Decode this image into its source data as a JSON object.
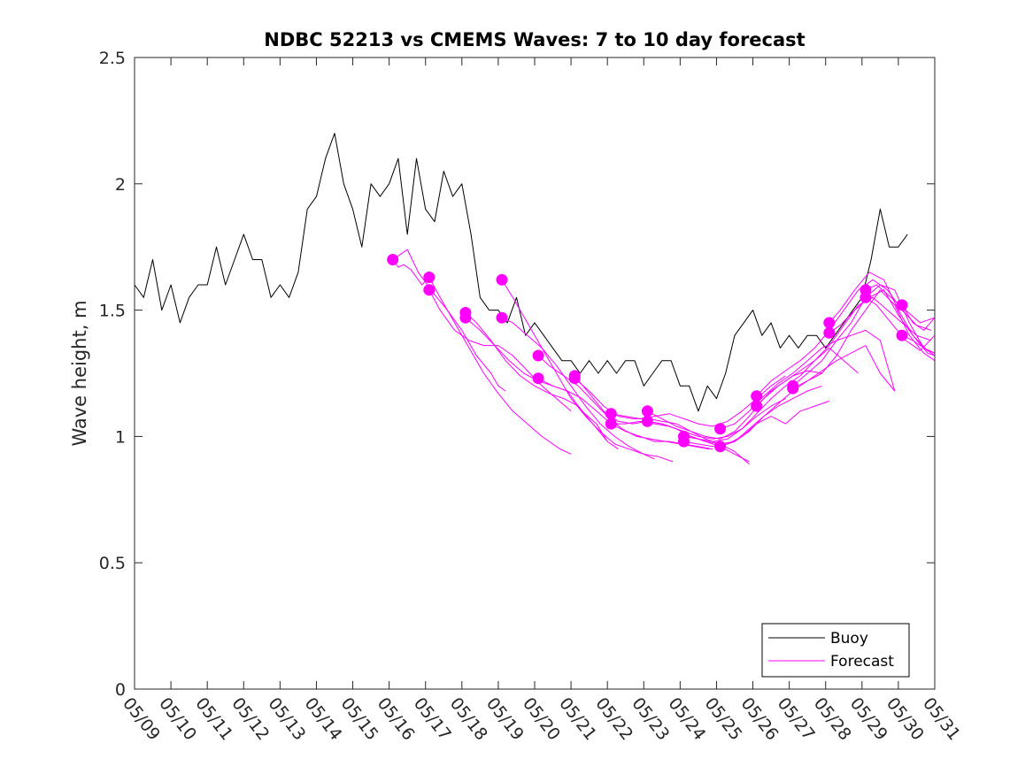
{
  "chart_data": {
    "type": "line",
    "title": "NDBC 52213 vs CMEMS Waves: 7 to 10 day forecast",
    "xlabel": "",
    "ylabel": "Wave height, m",
    "xlim": [
      9,
      31
    ],
    "ylim": [
      0,
      2.5
    ],
    "x_tick_labels": [
      "05/09",
      "05/10",
      "05/11",
      "05/12",
      "05/13",
      "05/14",
      "05/15",
      "05/16",
      "05/17",
      "05/18",
      "05/19",
      "05/20",
      "05/21",
      "05/22",
      "05/23",
      "05/24",
      "05/25",
      "05/26",
      "05/27",
      "05/28",
      "05/29",
      "05/30",
      "05/31"
    ],
    "y_ticks": [
      0,
      0.5,
      1,
      1.5,
      2,
      2.5
    ],
    "y_tick_labels": [
      "0",
      "0.5",
      "1",
      "1.5",
      "2",
      "2.5"
    ],
    "grid": false,
    "legend_position": "bottom-right",
    "legend": [
      "Buoy",
      "Forecast"
    ],
    "colors": {
      "buoy": "#000000",
      "forecast": "#ff00ff"
    },
    "series": [
      {
        "name": "Buoy",
        "x": [
          9.0,
          9.25,
          9.5,
          9.75,
          10.0,
          10.25,
          10.5,
          10.75,
          11.0,
          11.25,
          11.5,
          11.75,
          12.0,
          12.25,
          12.5,
          12.75,
          13.0,
          13.25,
          13.5,
          13.75,
          14.0,
          14.25,
          14.5,
          14.75,
          15.0,
          15.25,
          15.5,
          15.75,
          16.0,
          16.25,
          16.5,
          16.75,
          17.0,
          17.25,
          17.5,
          17.75,
          18.0,
          18.25,
          18.5,
          18.75,
          19.0,
          19.25,
          19.5,
          19.75,
          20.0,
          20.25,
          20.5,
          20.75,
          21.0,
          21.25,
          21.5,
          21.75,
          22.0,
          22.25,
          22.5,
          22.75,
          23.0,
          23.25,
          23.5,
          23.75,
          24.0,
          24.25,
          24.5,
          24.75,
          25.0,
          25.25,
          25.5,
          25.75,
          26.0,
          26.25,
          26.5,
          26.75,
          27.0,
          27.25,
          27.5,
          27.75,
          28.0,
          28.25,
          28.5,
          28.75,
          29.0,
          29.25,
          29.5,
          29.75,
          30.0,
          30.25
        ],
        "y": [
          1.6,
          1.55,
          1.7,
          1.5,
          1.6,
          1.45,
          1.55,
          1.6,
          1.6,
          1.75,
          1.6,
          1.7,
          1.8,
          1.7,
          1.7,
          1.55,
          1.6,
          1.55,
          1.65,
          1.9,
          1.95,
          2.1,
          2.2,
          2.0,
          1.9,
          1.75,
          2.0,
          1.95,
          2.0,
          2.1,
          1.8,
          2.1,
          1.9,
          1.85,
          2.05,
          1.95,
          2.0,
          1.8,
          1.55,
          1.5,
          1.5,
          1.45,
          1.55,
          1.4,
          1.45,
          1.4,
          1.35,
          1.3,
          1.3,
          1.25,
          1.3,
          1.25,
          1.3,
          1.25,
          1.3,
          1.3,
          1.2,
          1.25,
          1.3,
          1.3,
          1.2,
          1.2,
          1.1,
          1.2,
          1.15,
          1.25,
          1.4,
          1.45,
          1.5,
          1.4,
          1.45,
          1.35,
          1.4,
          1.35,
          1.4,
          1.4,
          1.35,
          1.4,
          1.45,
          1.5,
          1.55,
          1.7,
          1.9,
          1.75,
          1.75,
          1.8
        ]
      },
      {
        "name": "Forecast",
        "x": [
          16.1,
          16.3,
          16.5,
          16.8,
          17.2,
          17.6,
          18.0,
          18.4,
          18.8,
          19.0,
          19.2
        ],
        "y": [
          1.7,
          1.72,
          1.74,
          1.65,
          1.57,
          1.5,
          1.42,
          1.32,
          1.25,
          1.2,
          1.18
        ]
      },
      {
        "name": "Forecast",
        "x": [
          16.1,
          16.25,
          16.4,
          16.6,
          16.9,
          17.1
        ],
        "y": [
          1.7,
          1.67,
          1.68,
          1.66,
          1.6,
          1.63
        ]
      },
      {
        "name": "Forecast",
        "x": [
          17.1,
          17.4,
          17.8,
          18.2,
          18.6,
          19.0,
          19.4,
          19.8,
          20.2,
          20.7,
          21.0
        ],
        "y": [
          1.63,
          1.55,
          1.45,
          1.35,
          1.25,
          1.17,
          1.1,
          1.05,
          1.0,
          0.95,
          0.93
        ]
      },
      {
        "name": "Forecast",
        "x": [
          17.1,
          17.4,
          17.8,
          18.2,
          18.6,
          19.0,
          19.4,
          19.8,
          20.2,
          20.6,
          21.0
        ],
        "y": [
          1.58,
          1.5,
          1.42,
          1.38,
          1.36,
          1.36,
          1.32,
          1.26,
          1.2,
          1.15,
          1.1
        ]
      },
      {
        "name": "Forecast",
        "x": [
          18.1,
          18.4,
          18.8,
          19.2,
          19.6,
          20.0,
          20.4,
          20.8,
          21.2,
          21.6,
          22.0,
          22.3
        ],
        "y": [
          1.49,
          1.45,
          1.38,
          1.3,
          1.24,
          1.2,
          1.17,
          1.15,
          1.12,
          1.05,
          0.98,
          0.95
        ]
      },
      {
        "name": "Forecast",
        "x": [
          18.1,
          18.5,
          18.9,
          19.3,
          19.7,
          20.1,
          20.5,
          20.9,
          21.3,
          21.7,
          22.0
        ],
        "y": [
          1.47,
          1.42,
          1.36,
          1.3,
          1.25,
          1.22,
          1.2,
          1.18,
          1.1,
          1.05,
          0.98
        ]
      },
      {
        "name": "Forecast",
        "x": [
          19.1,
          19.4,
          19.8,
          20.2,
          20.6,
          21.0,
          21.4,
          21.8,
          22.2,
          22.6,
          23.0,
          23.3
        ],
        "y": [
          1.62,
          1.55,
          1.45,
          1.35,
          1.25,
          1.15,
          1.08,
          1.02,
          0.97,
          0.95,
          0.93,
          0.91
        ]
      },
      {
        "name": "Forecast",
        "x": [
          19.1,
          19.4,
          19.8,
          20.2,
          20.6,
          21.0,
          21.4,
          21.8,
          22.2,
          22.6,
          23.0,
          23.4,
          23.8
        ],
        "y": [
          1.47,
          1.45,
          1.4,
          1.35,
          1.28,
          1.2,
          1.12,
          1.05,
          1.0,
          0.96,
          0.93,
          0.92,
          0.9
        ]
      },
      {
        "name": "Forecast",
        "x": [
          20.1,
          20.4,
          20.8,
          21.2,
          21.6,
          22.0,
          22.4,
          22.8,
          23.2,
          23.6,
          24.0,
          24.4,
          24.8
        ],
        "y": [
          1.32,
          1.28,
          1.24,
          1.2,
          1.14,
          1.08,
          1.03,
          1.0,
          0.99,
          0.98,
          0.97,
          0.96,
          0.95
        ]
      },
      {
        "name": "Forecast",
        "x": [
          20.1,
          20.5,
          20.9,
          21.3,
          21.7,
          22.1,
          22.5,
          22.9,
          23.3,
          23.7,
          24.1,
          24.5,
          24.9
        ],
        "y": [
          1.23,
          1.2,
          1.18,
          1.15,
          1.1,
          1.05,
          1.02,
          1.0,
          0.98,
          0.98,
          0.97,
          0.96,
          0.95
        ]
      },
      {
        "name": "Forecast",
        "x": [
          21.1,
          21.5,
          21.9,
          22.3,
          22.7,
          23.1,
          23.5,
          23.9,
          24.3,
          24.7,
          25.1,
          25.5,
          25.9
        ],
        "y": [
          1.24,
          1.17,
          1.1,
          1.06,
          1.05,
          1.06,
          1.05,
          1.03,
          1.0,
          0.98,
          0.96,
          0.93,
          0.9
        ]
      },
      {
        "name": "Forecast",
        "x": [
          21.1,
          21.5,
          21.9,
          22.3,
          22.7,
          23.1,
          23.5,
          23.9,
          24.3,
          24.7,
          25.1,
          25.5,
          25.9
        ],
        "y": [
          1.23,
          1.18,
          1.12,
          1.08,
          1.07,
          1.07,
          1.06,
          1.05,
          1.02,
          0.99,
          0.97,
          0.94,
          0.89
        ]
      },
      {
        "name": "Forecast",
        "x": [
          22.1,
          22.5,
          22.9,
          23.3,
          23.7,
          24.1,
          24.5,
          24.9,
          25.3,
          25.7,
          26.1,
          26.5,
          26.9
        ],
        "y": [
          1.09,
          1.08,
          1.07,
          1.08,
          1.09,
          1.07,
          1.05,
          1.04,
          1.06,
          1.1,
          1.15,
          1.2,
          1.24
        ]
      },
      {
        "name": "Forecast",
        "x": [
          22.1,
          22.5,
          22.9,
          23.3,
          23.7,
          24.1,
          24.5,
          24.9,
          25.3,
          25.7,
          26.1,
          26.5,
          26.9
        ],
        "y": [
          1.05,
          1.05,
          1.06,
          1.05,
          1.04,
          1.02,
          1.0,
          0.99,
          1.0,
          1.03,
          1.08,
          1.12,
          1.15
        ]
      },
      {
        "name": "Forecast",
        "x": [
          23.1,
          23.5,
          23.9,
          24.3,
          24.7,
          25.1,
          25.5,
          25.9,
          26.3,
          26.7,
          27.1,
          27.5,
          27.9
        ],
        "y": [
          1.1,
          1.07,
          1.04,
          1.02,
          1.0,
          0.99,
          1.02,
          1.08,
          1.15,
          1.2,
          1.24,
          1.26,
          1.25
        ]
      },
      {
        "name": "Forecast",
        "x": [
          23.1,
          23.5,
          23.9,
          24.3,
          24.7,
          25.1,
          25.5,
          25.9,
          26.3,
          26.7,
          27.1,
          27.5,
          27.9
        ],
        "y": [
          1.06,
          1.05,
          1.03,
          1.0,
          0.98,
          0.97,
          0.98,
          1.03,
          1.08,
          1.12,
          1.15,
          1.18,
          1.2
        ]
      },
      {
        "name": "Forecast",
        "x": [
          24.1,
          24.5,
          24.9,
          25.3,
          25.7,
          26.1,
          26.5,
          26.9,
          27.3,
          27.7,
          28.1,
          28.5,
          28.9
        ],
        "y": [
          1.0,
          0.99,
          0.98,
          0.99,
          1.03,
          1.09,
          1.15,
          1.2,
          1.24,
          1.3,
          1.35,
          1.3,
          1.25
        ]
      },
      {
        "name": "Forecast",
        "x": [
          24.1,
          24.5,
          24.9,
          25.3,
          25.7,
          26.1,
          26.5,
          26.9,
          27.3,
          27.7,
          28.1
        ],
        "y": [
          0.98,
          0.97,
          0.96,
          0.97,
          1.0,
          1.05,
          1.08,
          1.05,
          1.1,
          1.12,
          1.14
        ]
      },
      {
        "name": "Forecast",
        "x": [
          25.1,
          25.5,
          25.9,
          26.3,
          26.7,
          27.1,
          27.5,
          27.9,
          28.3,
          28.7,
          29.1,
          29.5,
          29.9
        ],
        "y": [
          1.03,
          1.05,
          1.1,
          1.16,
          1.21,
          1.25,
          1.3,
          1.35,
          1.38,
          1.4,
          1.42,
          1.38,
          1.18
        ]
      },
      {
        "name": "Forecast",
        "x": [
          25.1,
          25.5,
          25.9,
          26.3,
          26.7,
          27.1,
          27.5,
          27.9,
          28.3,
          28.7,
          29.1,
          29.5,
          29.9
        ],
        "y": [
          0.96,
          0.98,
          1.02,
          1.08,
          1.13,
          1.18,
          1.22,
          1.26,
          1.3,
          1.33,
          1.36,
          1.25,
          1.18
        ]
      },
      {
        "name": "Forecast",
        "x": [
          26.1,
          26.5,
          26.9,
          27.3,
          27.7,
          28.1,
          28.5,
          28.9,
          29.3,
          29.7,
          30.1,
          30.5,
          30.9
        ],
        "y": [
          1.16,
          1.22,
          1.26,
          1.3,
          1.35,
          1.42,
          1.5,
          1.58,
          1.62,
          1.58,
          1.5,
          1.44,
          1.42
        ]
      },
      {
        "name": "Forecast",
        "x": [
          26.1,
          26.5,
          26.9,
          27.3,
          27.7,
          28.1,
          28.5,
          28.9,
          29.3,
          29.7,
          30.1,
          30.5,
          30.9
        ],
        "y": [
          1.12,
          1.18,
          1.22,
          1.26,
          1.3,
          1.36,
          1.44,
          1.52,
          1.55,
          1.5,
          1.45,
          1.4,
          1.38
        ]
      },
      {
        "name": "Forecast",
        "x": [
          27.1,
          27.5,
          27.9,
          28.3,
          28.7,
          29.1,
          29.5,
          29.9,
          30.3,
          30.7,
          31.0
        ],
        "y": [
          1.2,
          1.25,
          1.3,
          1.38,
          1.45,
          1.55,
          1.6,
          1.58,
          1.45,
          1.35,
          1.33
        ]
      },
      {
        "name": "Forecast",
        "x": [
          27.1,
          27.5,
          27.9,
          28.3,
          28.7,
          29.1,
          29.5,
          29.9,
          30.3,
          30.7,
          31.0
        ],
        "y": [
          1.19,
          1.22,
          1.25,
          1.32,
          1.42,
          1.5,
          1.58,
          1.52,
          1.4,
          1.33,
          1.3
        ]
      },
      {
        "name": "Forecast",
        "x": [
          28.1,
          28.4,
          28.8,
          29.2,
          29.6,
          30.0,
          30.4,
          30.8,
          31.0
        ],
        "y": [
          1.45,
          1.5,
          1.58,
          1.65,
          1.62,
          1.5,
          1.4,
          1.34,
          1.33
        ]
      },
      {
        "name": "Forecast",
        "x": [
          28.1,
          28.4,
          28.8,
          29.2,
          29.6,
          30.0,
          30.4,
          30.8,
          31.0
        ],
        "y": [
          1.41,
          1.44,
          1.5,
          1.55,
          1.58,
          1.48,
          1.4,
          1.33,
          1.32
        ]
      },
      {
        "name": "Forecast",
        "x": [
          29.1,
          29.4,
          29.8,
          30.2,
          30.6,
          31.0
        ],
        "y": [
          1.58,
          1.6,
          1.55,
          1.5,
          1.45,
          1.47
        ]
      },
      {
        "name": "Forecast",
        "x": [
          29.1,
          29.4,
          29.8,
          30.2,
          30.6,
          31.0
        ],
        "y": [
          1.55,
          1.52,
          1.45,
          1.38,
          1.34,
          1.4
        ]
      },
      {
        "name": "Forecast",
        "x": [
          30.1,
          30.4,
          30.7,
          31.0
        ],
        "y": [
          1.52,
          1.45,
          1.42,
          1.47
        ]
      },
      {
        "name": "Forecast",
        "x": [
          30.1,
          30.4,
          30.7,
          31.0
        ],
        "y": [
          1.4,
          1.38,
          1.35,
          1.32
        ]
      }
    ],
    "markers": {
      "name": "Forecast",
      "x": [
        16.1,
        17.1,
        17.1,
        18.1,
        18.1,
        19.1,
        19.1,
        20.1,
        20.1,
        21.1,
        21.1,
        22.1,
        22.1,
        23.1,
        23.1,
        24.1,
        24.1,
        25.1,
        25.1,
        26.1,
        26.1,
        27.1,
        27.1,
        28.1,
        28.1,
        29.1,
        29.1,
        30.1,
        30.1
      ],
      "y": [
        1.7,
        1.63,
        1.58,
        1.49,
        1.47,
        1.62,
        1.47,
        1.32,
        1.23,
        1.24,
        1.23,
        1.09,
        1.05,
        1.1,
        1.06,
        1.0,
        0.98,
        1.03,
        0.96,
        1.16,
        1.12,
        1.2,
        1.19,
        1.45,
        1.41,
        1.58,
        1.55,
        1.52,
        1.4
      ]
    }
  }
}
